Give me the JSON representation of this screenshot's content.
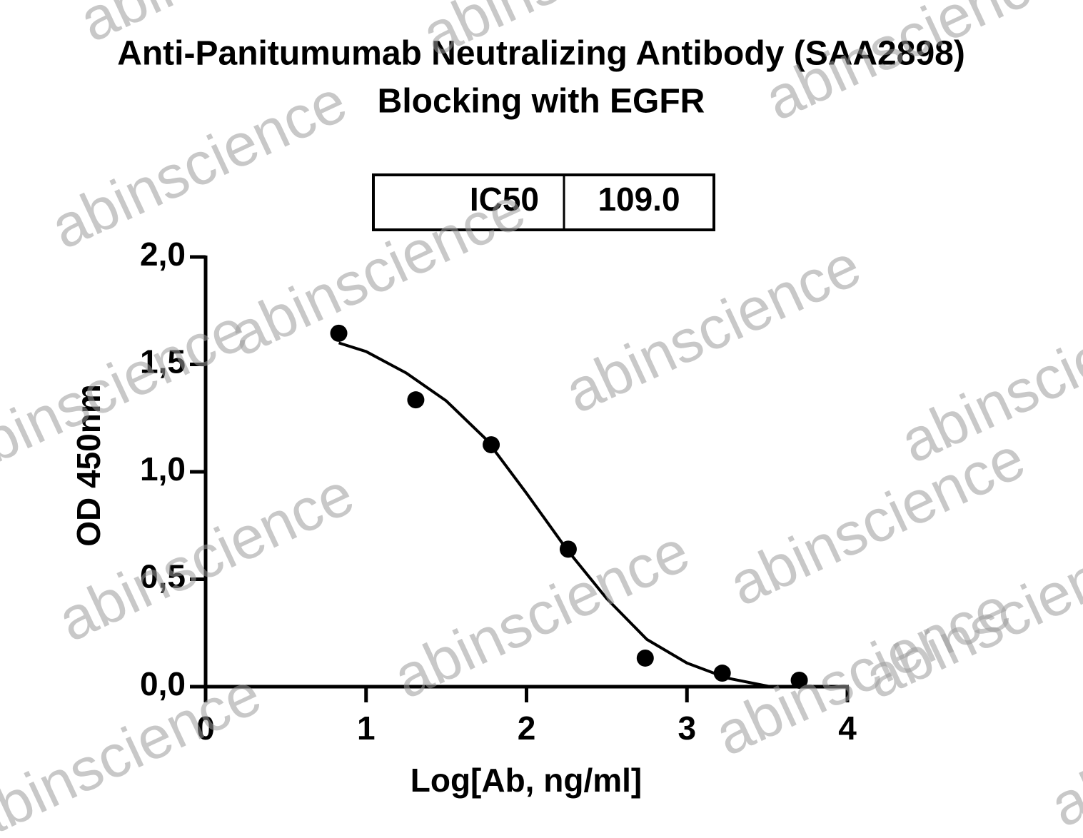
{
  "chart_data": {
    "type": "scatter",
    "title": [
      "Anti-Panitumumab Neutralizing Antibody (SAA2898)",
      "Blocking with EGFR"
    ],
    "ic50_table": {
      "label": "IC50",
      "value": "109.0"
    },
    "xlabel": "Log[Ab, ng/ml]",
    "ylabel": "OD 450nm",
    "watermark": "abinscience",
    "xlim": [
      0,
      4
    ],
    "xticks": [
      0,
      1,
      2,
      3,
      4
    ],
    "ylim": [
      0,
      2
    ],
    "yticks": [
      {
        "value": 0,
        "label": "0,0"
      },
      {
        "value": 0.5,
        "label": "0,5"
      },
      {
        "value": 1,
        "label": "1,0"
      },
      {
        "value": 1.5,
        "label": "1,5"
      },
      {
        "value": 2,
        "label": "2,0"
      }
    ],
    "series": [
      {
        "type": "scatter",
        "color": "#000000",
        "x": [
          0.83,
          1.31,
          1.78,
          2.26,
          2.74,
          3.22,
          3.7
        ],
        "values": [
          1.645,
          1.335,
          1.126,
          0.64,
          0.133,
          0.063,
          0.03
        ]
      },
      {
        "type": "line",
        "color": "#000000",
        "x": [
          0.83,
          1.0,
          1.25,
          1.5,
          1.75,
          2.0,
          2.25,
          2.5,
          2.75,
          3.0,
          3.25,
          3.52
        ],
        "values": [
          1.6,
          1.56,
          1.46,
          1.33,
          1.15,
          0.9,
          0.64,
          0.41,
          0.22,
          0.11,
          0.04,
          0.0
        ]
      }
    ]
  }
}
